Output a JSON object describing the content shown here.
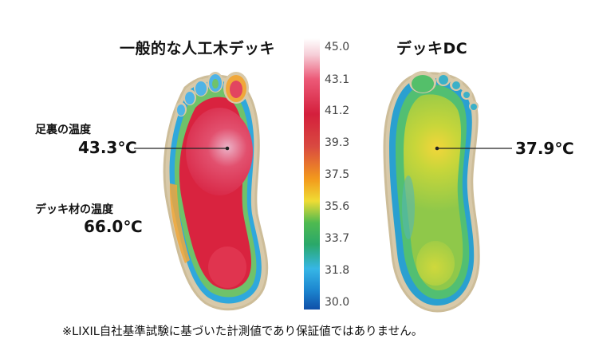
{
  "titles": {
    "left": "一般的な人工木デッキ",
    "right": "デッキDC"
  },
  "left_callouts": {
    "sole_label": "足裏の温度",
    "sole_value": "43.3℃",
    "deck_label": "デッキ材の温度",
    "deck_value": "66.0℃"
  },
  "right_callouts": {
    "sole_value": "37.9℃"
  },
  "scale": {
    "ticks": [
      "45.0",
      "43.1",
      "41.2",
      "39.3",
      "37.5",
      "35.6",
      "33.7",
      "31.8",
      "30.0"
    ]
  },
  "footnote": "※LIXIL自社基準試験に基づいた計測値であり保証値ではありません。"
}
